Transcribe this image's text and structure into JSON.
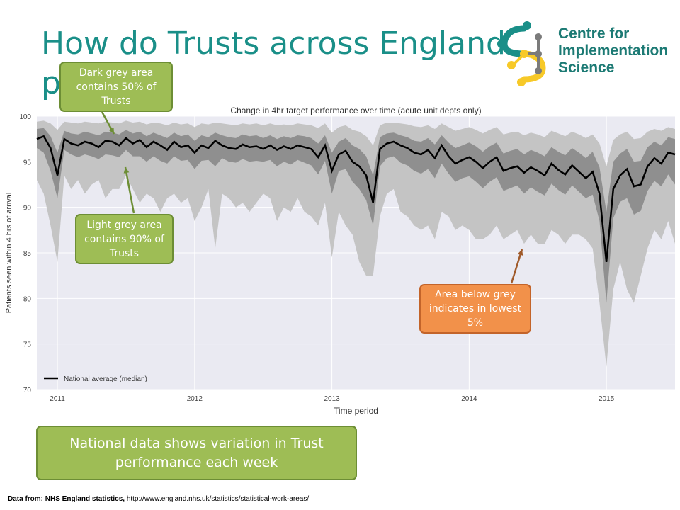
{
  "slide": {
    "title_line1": "How do Trusts across England",
    "title_line2": "p",
    "logo": {
      "line1": "Centre for",
      "line2": "Implementation",
      "line3": "Science",
      "icon": "network-nodes-icon"
    },
    "callouts": {
      "dark_grey": "Dark grey area contains 50% of Trusts",
      "light_grey": "Light grey area contains 90% of Trusts",
      "below_grey": "Area below grey indicates in lowest 5%",
      "summary": "National data shows variation in Trust performance each week"
    },
    "source": {
      "label": "Data from: NHS England statistics,",
      "url": "http://www.england.nhs.uk/statistics/statistical-work-areas/"
    },
    "colors": {
      "title": "#1a8f88",
      "callout_green": "#9ebd55",
      "callout_orange": "#f2914a",
      "band_90": "#c4c4c4",
      "band_50": "#8f8f8f",
      "plot_bg": "#eaeaf2",
      "median_line": "#000000"
    }
  },
  "chart_data": {
    "type": "area",
    "title": "Change in 4hr target performance over time (acute unit depts only)",
    "xlabel": "Time period",
    "ylabel": "Patients seen within 4 hrs of arrival",
    "xlim": [
      2010.85,
      2015.5
    ],
    "ylim": [
      70,
      100
    ],
    "xticks": [
      2011,
      2012,
      2013,
      2014,
      2015
    ],
    "yticks": [
      70,
      75,
      80,
      85,
      90,
      95,
      100
    ],
    "grid": true,
    "legend": {
      "position": "bottom-left",
      "label": "National average (median)"
    },
    "x": [
      2010.85,
      2010.9,
      2010.95,
      2011.0,
      2011.05,
      2011.1,
      2011.15,
      2011.2,
      2011.25,
      2011.3,
      2011.35,
      2011.4,
      2011.45,
      2011.5,
      2011.55,
      2011.6,
      2011.65,
      2011.7,
      2011.75,
      2011.8,
      2011.85,
      2011.9,
      2011.95,
      2012.0,
      2012.05,
      2012.1,
      2012.15,
      2012.2,
      2012.25,
      2012.3,
      2012.35,
      2012.4,
      2012.45,
      2012.5,
      2012.55,
      2012.6,
      2012.65,
      2012.7,
      2012.75,
      2012.8,
      2012.85,
      2012.9,
      2012.95,
      2013.0,
      2013.05,
      2013.1,
      2013.15,
      2013.2,
      2013.25,
      2013.3,
      2013.35,
      2013.4,
      2013.45,
      2013.5,
      2013.55,
      2013.6,
      2013.65,
      2013.7,
      2013.75,
      2013.8,
      2013.85,
      2013.9,
      2013.95,
      2014.0,
      2014.05,
      2014.1,
      2014.15,
      2014.2,
      2014.25,
      2014.3,
      2014.35,
      2014.4,
      2014.45,
      2014.5,
      2014.55,
      2014.6,
      2014.65,
      2014.7,
      2014.75,
      2014.8,
      2014.85,
      2014.9,
      2014.95,
      2015.0,
      2015.05,
      2015.1,
      2015.15,
      2015.2,
      2015.25,
      2015.3,
      2015.35,
      2015.4,
      2015.45,
      2015.5
    ],
    "series": [
      {
        "name": "National average (median)",
        "role": "median",
        "values": [
          97.5,
          97.8,
          96.5,
          93.5,
          97.5,
          97.0,
          96.8,
          97.2,
          97.0,
          96.6,
          97.3,
          97.2,
          96.8,
          97.6,
          97.0,
          97.4,
          96.6,
          97.2,
          96.8,
          96.3,
          97.2,
          96.6,
          96.8,
          96.0,
          96.8,
          96.5,
          97.3,
          96.8,
          96.5,
          96.4,
          96.9,
          96.6,
          96.7,
          96.4,
          96.8,
          96.3,
          96.7,
          96.4,
          96.8,
          96.6,
          96.4,
          95.5,
          96.8,
          94.0,
          95.8,
          96.2,
          95.0,
          94.5,
          93.5,
          90.5,
          96.4,
          97.0,
          97.2,
          96.8,
          96.5,
          96.0,
          95.8,
          96.3,
          95.4,
          96.8,
          95.6,
          94.8,
          95.2,
          95.5,
          95.0,
          94.3,
          95.0,
          95.5,
          94.0,
          94.3,
          94.5,
          93.8,
          94.4,
          94.0,
          93.5,
          94.8,
          94.1,
          93.6,
          94.6,
          93.9,
          93.2,
          93.9,
          91.5,
          84.0,
          92.0,
          93.5,
          94.2,
          92.3,
          92.5,
          94.5,
          95.4,
          94.8,
          96.0,
          95.8
        ]
      },
      {
        "name": "5th percentile",
        "role": "p05",
        "values": [
          93.0,
          91.5,
          88.0,
          84.0,
          93.5,
          92.0,
          93.0,
          91.5,
          92.5,
          93.0,
          91.0,
          92.0,
          92.0,
          93.5,
          92.0,
          90.5,
          91.5,
          91.0,
          89.5,
          91.0,
          91.5,
          90.5,
          91.0,
          88.5,
          90.0,
          92.0,
          85.5,
          91.5,
          91.0,
          90.0,
          90.5,
          89.5,
          90.5,
          91.5,
          91.0,
          88.5,
          90.0,
          89.5,
          91.0,
          89.5,
          89.0,
          88.0,
          90.5,
          84.5,
          89.5,
          88.0,
          87.0,
          84.0,
          82.5,
          82.5,
          89.0,
          91.5,
          92.0,
          89.5,
          89.0,
          88.0,
          87.5,
          88.0,
          86.5,
          89.5,
          89.0,
          87.5,
          88.0,
          87.5,
          86.5,
          86.5,
          87.0,
          88.0,
          86.5,
          87.0,
          87.5,
          86.0,
          87.0,
          86.0,
          86.0,
          87.5,
          87.0,
          86.0,
          87.0,
          87.0,
          86.5,
          85.5,
          79.5,
          72.5,
          81.0,
          84.0,
          81.0,
          79.5,
          82.5,
          85.5,
          87.5,
          86.5,
          88.5,
          86.0
        ]
      },
      {
        "name": "25th percentile",
        "role": "p25",
        "values": [
          96.5,
          96.0,
          94.0,
          91.0,
          96.3,
          95.8,
          95.5,
          95.8,
          95.6,
          95.3,
          95.8,
          95.7,
          95.5,
          96.3,
          95.6,
          95.6,
          95.0,
          95.6,
          95.1,
          94.8,
          95.6,
          95.1,
          95.2,
          94.2,
          95.1,
          95.2,
          94.5,
          95.4,
          95.0,
          94.9,
          95.3,
          95.0,
          95.1,
          95.0,
          95.2,
          94.5,
          95.0,
          94.7,
          95.2,
          94.9,
          94.6,
          93.6,
          95.1,
          91.5,
          94.0,
          94.2,
          92.8,
          92.0,
          90.8,
          88.0,
          94.5,
          95.4,
          95.6,
          94.9,
          94.6,
          94.0,
          93.7,
          94.2,
          93.2,
          94.8,
          93.7,
          92.8,
          93.2,
          93.4,
          92.8,
          92.1,
          92.8,
          93.3,
          91.8,
          92.1,
          92.4,
          91.5,
          92.2,
          91.7,
          91.3,
          92.6,
          91.9,
          91.4,
          92.4,
          91.7,
          91.0,
          91.4,
          88.5,
          79.5,
          88.8,
          90.6,
          91.0,
          89.2,
          89.6,
          91.8,
          92.9,
          92.3,
          93.6,
          92.5
        ]
      },
      {
        "name": "75th percentile",
        "role": "p75",
        "values": [
          98.6,
          98.7,
          97.8,
          96.0,
          98.4,
          98.1,
          98.0,
          98.3,
          98.1,
          97.9,
          98.3,
          98.2,
          98.0,
          98.5,
          98.1,
          98.3,
          97.8,
          98.2,
          97.9,
          97.6,
          98.2,
          97.8,
          98.0,
          97.3,
          97.9,
          97.7,
          98.2,
          97.9,
          97.7,
          97.6,
          98.0,
          97.8,
          97.9,
          97.6,
          97.9,
          97.5,
          97.8,
          97.6,
          97.9,
          97.8,
          97.6,
          97.0,
          97.9,
          96.0,
          97.2,
          97.6,
          96.8,
          96.4,
          95.6,
          93.5,
          97.7,
          98.1,
          98.2,
          97.9,
          97.7,
          97.3,
          97.2,
          97.6,
          96.9,
          97.9,
          97.1,
          96.5,
          96.8,
          97.1,
          96.7,
          96.1,
          96.7,
          97.1,
          95.9,
          96.2,
          96.4,
          95.8,
          96.3,
          96.0,
          95.6,
          96.6,
          96.1,
          95.7,
          96.5,
          96.0,
          95.4,
          96.1,
          94.4,
          89.5,
          95.0,
          95.9,
          96.4,
          95.0,
          95.1,
          96.6,
          97.2,
          96.8,
          97.7,
          97.5
        ]
      },
      {
        "name": "95th percentile",
        "role": "p95",
        "values": [
          99.4,
          99.5,
          99.2,
          98.5,
          99.4,
          99.3,
          99.2,
          99.4,
          99.3,
          99.2,
          99.4,
          99.3,
          99.2,
          99.5,
          99.3,
          99.4,
          99.1,
          99.3,
          99.2,
          99.0,
          99.3,
          99.1,
          99.2,
          98.8,
          99.2,
          99.1,
          99.3,
          99.2,
          99.1,
          99.0,
          99.2,
          99.1,
          99.2,
          99.0,
          99.2,
          99.0,
          99.1,
          99.0,
          99.2,
          99.1,
          99.0,
          98.7,
          99.2,
          98.2,
          98.8,
          99.0,
          98.5,
          98.3,
          97.8,
          96.8,
          99.0,
          99.3,
          99.3,
          99.2,
          99.1,
          98.9,
          98.8,
          99.0,
          98.6,
          99.2,
          98.8,
          98.4,
          98.6,
          98.8,
          98.5,
          98.1,
          98.5,
          98.8,
          98.0,
          98.2,
          98.3,
          97.9,
          98.2,
          98.0,
          97.7,
          98.4,
          98.1,
          97.8,
          98.3,
          98.0,
          97.6,
          98.0,
          97.0,
          94.5,
          97.4,
          98.0,
          98.3,
          97.5,
          97.6,
          98.3,
          98.6,
          98.4,
          98.8,
          98.6
        ]
      }
    ]
  }
}
